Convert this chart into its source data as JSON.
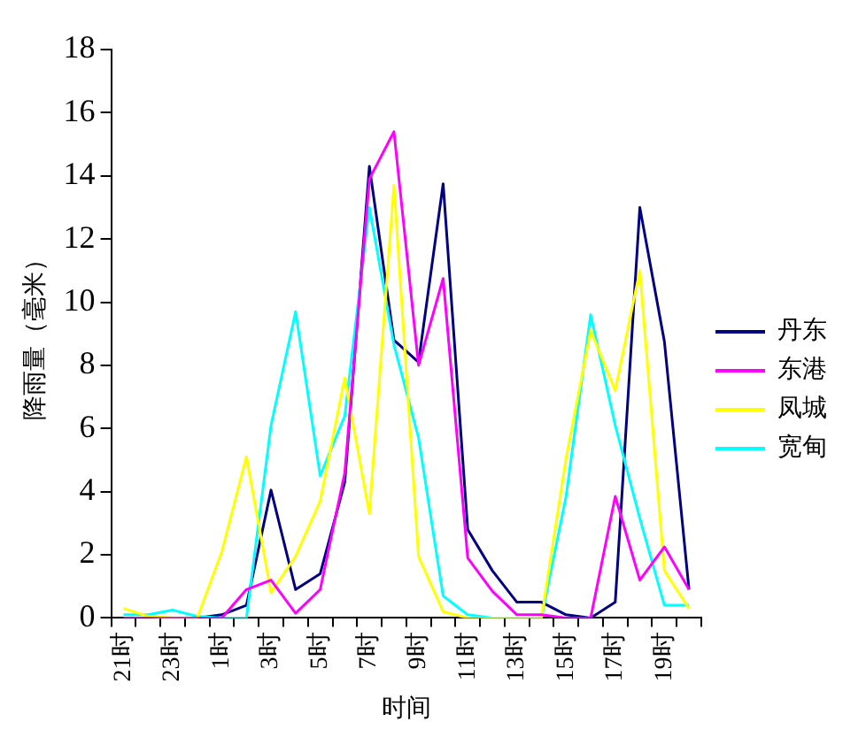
{
  "chart_data": {
    "type": "line",
    "xlabel": "时间",
    "ylabel": "降雨量（毫米）",
    "categories": [
      "21时",
      null,
      "23时",
      null,
      "1时",
      null,
      "3时",
      null,
      "5时",
      null,
      "7时",
      null,
      "9时",
      null,
      "11时",
      null,
      "13时",
      null,
      "15时",
      null,
      "17时",
      null,
      "19时",
      null
    ],
    "series": [
      {
        "name": "丹东",
        "color": "#000080",
        "values": [
          null,
          null,
          0,
          0,
          0.1,
          0.4,
          4.05,
          0.9,
          1.4,
          4.3,
          14.3,
          8.8,
          8.1,
          13.75,
          2.8,
          1.5,
          0.5,
          0.5,
          0.1,
          0,
          0.5,
          13,
          8.75,
          0.9
        ]
      },
      {
        "name": "东港",
        "color": "#ff00ff",
        "values": [
          0,
          0,
          0,
          0,
          0,
          0.9,
          1.2,
          0.15,
          0.9,
          4.6,
          13.9,
          15.4,
          8,
          10.75,
          1.9,
          0.85,
          0.1,
          0.1,
          0,
          0,
          3.85,
          1.2,
          2.25,
          0.9
        ]
      },
      {
        "name": "凤城",
        "color": "#ffff00",
        "values": [
          0.3,
          0.05,
          0,
          0,
          2.1,
          5.1,
          0.8,
          1.95,
          3.7,
          7.6,
          3.3,
          13.7,
          1.95,
          0.2,
          0,
          0,
          0,
          0,
          5.05,
          9.1,
          7.2,
          11,
          1.5,
          0.3
        ]
      },
      {
        "name": "宽甸",
        "color": "#00ffff",
        "values": [
          0.1,
          0.1,
          0.25,
          0.05,
          0,
          0,
          6.1,
          9.7,
          4.5,
          6.4,
          13,
          8.65,
          5.7,
          0.7,
          0.1,
          0,
          0,
          0,
          3.85,
          9.6,
          6.1,
          3.15,
          0.4,
          0.4
        ]
      }
    ],
    "ylim": [
      0,
      18
    ],
    "yticks": [
      0,
      2,
      4,
      6,
      8,
      10,
      12,
      14,
      16,
      18
    ],
    "grid": false,
    "legend": "right",
    "marker": "none",
    "line_style": "solid"
  }
}
